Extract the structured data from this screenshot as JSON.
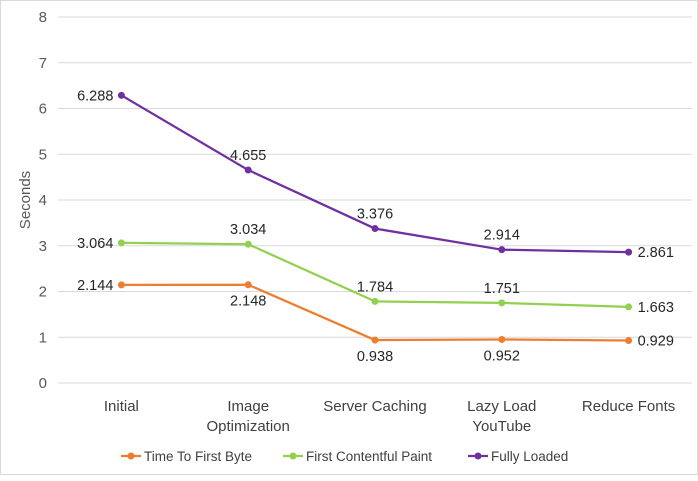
{
  "chart_data": {
    "type": "line",
    "title": "",
    "xlabel": "",
    "ylabel": "Seconds",
    "ylim": [
      0,
      8
    ],
    "yticks": [
      0,
      1,
      2,
      3,
      4,
      5,
      6,
      7,
      8
    ],
    "grid": "horizontal",
    "legend_position": "bottom",
    "categories": [
      [
        "Initial"
      ],
      [
        "Image",
        "Optimization"
      ],
      [
        "Server Caching"
      ],
      [
        "Lazy Load",
        "YouTube"
      ],
      [
        "Reduce Fonts"
      ]
    ],
    "series": [
      {
        "name": "Time To First Byte",
        "color": "#ed7d31",
        "values": [
          2.144,
          2.148,
          0.938,
          0.952,
          0.929
        ],
        "label_values": [
          "2.144",
          "2.148",
          "0.938",
          "0.952",
          "0.929"
        ],
        "label_placement": [
          "left",
          "below",
          "below",
          "below",
          "right"
        ]
      },
      {
        "name": "First Contentful Paint",
        "color": "#92d050",
        "values": [
          3.064,
          3.034,
          1.784,
          1.751,
          1.663
        ],
        "label_values": [
          "3.064",
          "3.034",
          "1.784",
          "1.751",
          "1.663"
        ],
        "label_placement": [
          "left",
          "above",
          "above",
          "above",
          "right"
        ]
      },
      {
        "name": "Fully Loaded",
        "color": "#7030a0",
        "values": [
          6.288,
          4.655,
          3.376,
          2.914,
          2.861
        ],
        "label_values": [
          "6.288",
          "4.655",
          "3.376",
          "2.914",
          "2.861"
        ],
        "label_placement": [
          "left",
          "above",
          "above",
          "above",
          "right"
        ]
      }
    ]
  }
}
